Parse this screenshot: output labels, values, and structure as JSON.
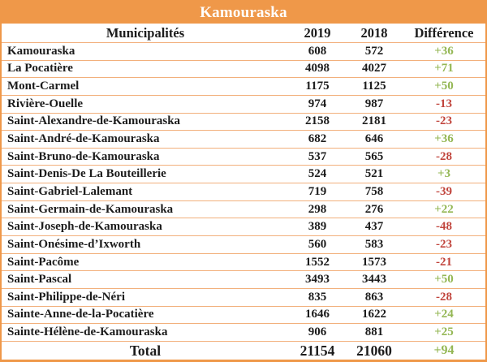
{
  "chart_data": {
    "type": "table",
    "title": "Kamouraska",
    "columns": [
      "Municipalités",
      "2019",
      "2018",
      "Différence"
    ],
    "rows": [
      [
        "Kamouraska",
        608,
        572,
        "+36"
      ],
      [
        "La Pocatière",
        4098,
        4027,
        "+71"
      ],
      [
        "Mont-Carmel",
        1175,
        1125,
        "+50"
      ],
      [
        "Rivière-Ouelle",
        974,
        987,
        "-13"
      ],
      [
        "Saint-Alexandre-de-Kamouraska",
        2158,
        2181,
        "-23"
      ],
      [
        "Saint-André-de-Kamouraska",
        682,
        646,
        "+36"
      ],
      [
        "Saint-Bruno-de-Kamouraska",
        537,
        565,
        "-28"
      ],
      [
        "Saint-Denis-De La Bouteillerie",
        524,
        521,
        "+3"
      ],
      [
        "Saint-Gabriel-Lalemant",
        719,
        758,
        "-39"
      ],
      [
        "Saint-Germain-de-Kamouraska",
        298,
        276,
        "+22"
      ],
      [
        "Saint-Joseph-de-Kamouraska",
        389,
        437,
        "-48"
      ],
      [
        "Saint-Onésime-d’Ixworth",
        560,
        583,
        "-23"
      ],
      [
        "Saint-Pacôme",
        1552,
        1573,
        "-21"
      ],
      [
        "Saint-Pascal",
        3493,
        3443,
        "+50"
      ],
      [
        "Saint-Philippe-de-Néri",
        835,
        863,
        "-28"
      ],
      [
        "Sainte-Anne-de-la-Pocatière",
        1646,
        1622,
        "+24"
      ],
      [
        "Sainte-Hélène-de-Kamouraska",
        906,
        881,
        "+25"
      ]
    ],
    "total_row": [
      "Total",
      21154,
      21060,
      "+94"
    ]
  },
  "colors": {
    "header_orange": "#ef9849",
    "row_separator": "#f2b07c",
    "positive_green": "#94b754",
    "negative_red": "#c1453d",
    "text_black": "#1c1c1c"
  }
}
